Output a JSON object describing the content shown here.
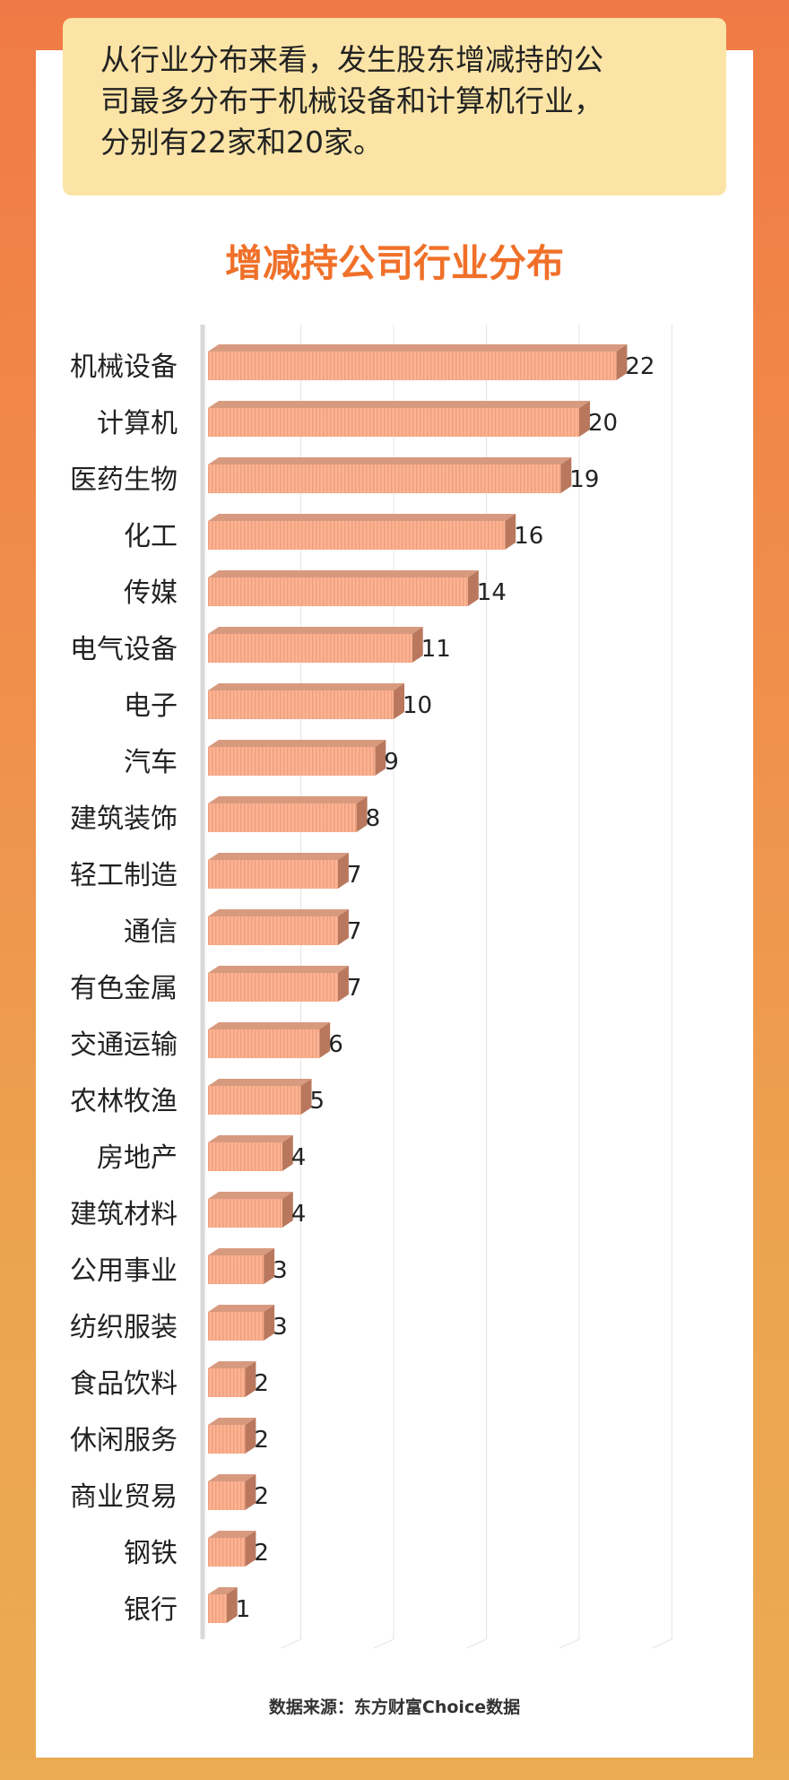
{
  "note": {
    "lines": [
      "从行业分布来看，发生股东增减持的公",
      "司最多分布于机械设备和计算机行业，",
      "分别有22家和20家。"
    ]
  },
  "source": "数据来源：东方财富Choice数据",
  "colors": {
    "bar_front": "#fcb391",
    "bar_stripe": "#ee9f80",
    "bar_top": "#d79a7f",
    "bar_side": "#b9785d",
    "title": "#f07029",
    "note_bg": "#fbe4a6"
  },
  "chart_data": {
    "type": "bar",
    "orientation": "horizontal",
    "title": "增减持公司行业分布",
    "categories": [
      "机械设备",
      "计算机",
      "医药生物",
      "化工",
      "传媒",
      "电气设备",
      "电子",
      "汽车",
      "建筑装饰",
      "轻工制造",
      "通信",
      "有色金属",
      "交通运输",
      "农林牧渔",
      "房地产",
      "建筑材料",
      "公用事业",
      "纺织服装",
      "食品饮料",
      "休闲服务",
      "商业贸易",
      "钢铁",
      "银行"
    ],
    "values": [
      22,
      20,
      19,
      16,
      14,
      11,
      10,
      9,
      8,
      7,
      7,
      7,
      6,
      5,
      4,
      4,
      3,
      3,
      2,
      2,
      2,
      2,
      1
    ],
    "xlim": [
      0,
      25
    ],
    "grid": true,
    "legend": "none",
    "style": "3d"
  }
}
